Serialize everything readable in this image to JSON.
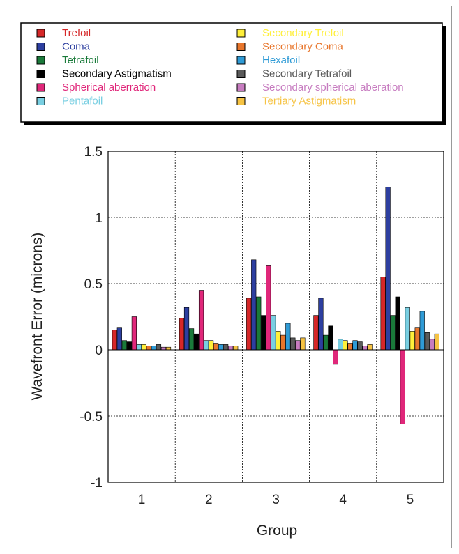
{
  "chart_data": {
    "type": "bar",
    "title": "",
    "xlabel": "Group",
    "ylabel": "Wavefront Error (microns)",
    "ylim": [
      -1,
      1.5
    ],
    "yticks": [
      "1.5",
      "1",
      "0.5",
      "0",
      "-0.5",
      "-1"
    ],
    "categories": [
      "1",
      "2",
      "3",
      "4",
      "5"
    ],
    "grid": true,
    "legend_position": "top",
    "series": [
      {
        "name": "Trefoil",
        "color": "#d62728",
        "values": [
          0.15,
          0.24,
          0.39,
          0.26,
          0.55
        ]
      },
      {
        "name": "Coma",
        "color": "#2d3fa0",
        "values": [
          0.17,
          0.32,
          0.68,
          0.39,
          1.23
        ]
      },
      {
        "name": "Tetrafoil",
        "color": "#1a7a3a",
        "values": [
          0.07,
          0.16,
          0.4,
          0.11,
          0.26
        ]
      },
      {
        "name": "Secondary Astigmatism",
        "color": "#000000",
        "values": [
          0.06,
          0.12,
          0.26,
          0.18,
          0.4
        ]
      },
      {
        "name": "Spherical aberration",
        "color": "#e0277a",
        "values": [
          0.25,
          0.45,
          0.64,
          -0.11,
          -0.56
        ]
      },
      {
        "name": "Pentafoil",
        "color": "#79cfe2",
        "values": [
          0.04,
          0.07,
          0.26,
          0.08,
          0.32
        ]
      },
      {
        "name": "Secondary Trefoil",
        "color": "#ffef3a",
        "values": [
          0.04,
          0.07,
          0.14,
          0.07,
          0.14
        ]
      },
      {
        "name": "Secondary Coma",
        "color": "#e8762c",
        "values": [
          0.03,
          0.05,
          0.11,
          0.05,
          0.17
        ]
      },
      {
        "name": "Hexafoil",
        "color": "#2f9bd6",
        "values": [
          0.03,
          0.04,
          0.2,
          0.07,
          0.29
        ]
      },
      {
        "name": "Secondary Tetrafoil",
        "color": "#5a5a5a",
        "values": [
          0.04,
          0.04,
          0.09,
          0.06,
          0.13
        ]
      },
      {
        "name": "Secondary spherical aberation",
        "color": "#c77cc0",
        "values": [
          0.02,
          0.03,
          0.07,
          0.03,
          0.08
        ]
      },
      {
        "name": "Tertiary Astigmatism",
        "color": "#f6c343",
        "values": [
          0.02,
          0.03,
          0.09,
          0.04,
          0.12
        ]
      }
    ]
  }
}
